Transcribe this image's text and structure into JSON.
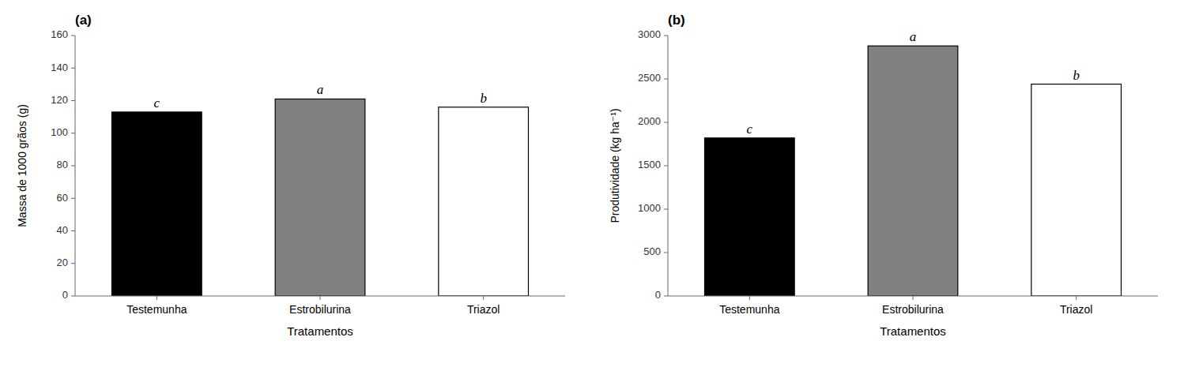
{
  "chart_data": [
    {
      "type": "bar",
      "title": "(a)",
      "categories": [
        "Testemunha",
        "Estrobilurina",
        "Triazol"
      ],
      "values": [
        113,
        121,
        116
      ],
      "annotations": [
        "c",
        "a",
        "b"
      ],
      "colors": [
        "#000000",
        "#808080",
        "#ffffff"
      ],
      "xlabel": "Tratamentos",
      "ylabel": "Massa de 1000 grãos (g)",
      "ylim": [
        0,
        160
      ],
      "yticks": [
        0,
        20,
        40,
        60,
        80,
        100,
        120,
        140,
        160
      ],
      "grid": false
    },
    {
      "type": "bar",
      "title": "(b)",
      "categories": [
        "Testemunha",
        "Estrobilurina",
        "Triazol"
      ],
      "values": [
        1820,
        2880,
        2440
      ],
      "annotations": [
        "c",
        "a",
        "b"
      ],
      "colors": [
        "#000000",
        "#808080",
        "#ffffff"
      ],
      "xlabel": "Tratamentos",
      "ylabel": "Produtividade (kg ha⁻¹)",
      "ylim": [
        0,
        3000
      ],
      "yticks": [
        0,
        500,
        1000,
        1500,
        2000,
        2500,
        3000
      ],
      "grid": false
    }
  ]
}
